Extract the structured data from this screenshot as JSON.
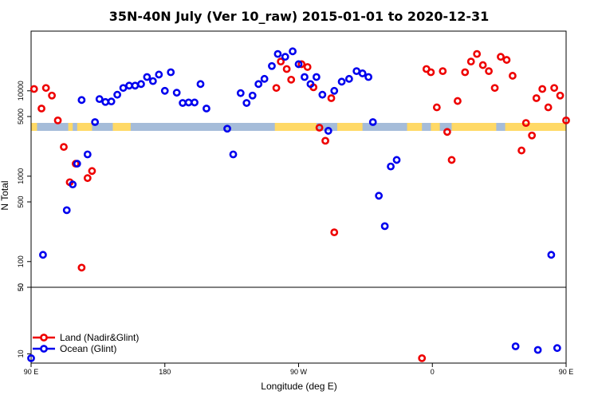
{
  "chart_data": {
    "type": "scatter",
    "title": "35N-40N July (Ver 10_raw)   2015-01-01 to 2020-12-31",
    "xlabel": "Longitude (deg E)",
    "ylabel": "N Total",
    "x_range": [
      90,
      450
    ],
    "x_ticks": [
      {
        "value": 90,
        "label": "90 E"
      },
      {
        "value": 180,
        "label": "180"
      },
      {
        "value": 270,
        "label": "90 W"
      },
      {
        "value": 360,
        "label": "0"
      },
      {
        "value": 450,
        "label": "90 E"
      },
      {
        "value": 540,
        "label": "180"
      }
    ],
    "upper_panel": {
      "scale": "log",
      "ylim": [
        50,
        50000
      ],
      "y_ticks": [
        {
          "value": 50,
          "label": "50"
        },
        {
          "value": 100,
          "label": "100"
        },
        {
          "value": 500,
          "label": "500"
        },
        {
          "value": 1000,
          "label": "1000"
        },
        {
          "value": 5000,
          "label": "5000"
        },
        {
          "value": 10000,
          "label": "10000"
        }
      ]
    },
    "lower_panel": {
      "scale": "log",
      "ylim": [
        8,
        50
      ],
      "y_ticks": [
        {
          "value": 10,
          "label": "10"
        },
        {
          "value": 50,
          "label": "50"
        }
      ]
    },
    "land_mask": {
      "color_land": "#ffd966",
      "color_ocean": "#a5bcd9",
      "land_ranges": [
        [
          90,
          94
        ],
        [
          115,
          118
        ],
        [
          121,
          131
        ],
        [
          145,
          157
        ],
        [
          254,
          282
        ],
        [
          296,
          313
        ],
        [
          343,
          353
        ],
        [
          359,
          365
        ],
        [
          373,
          403
        ],
        [
          409,
          454
        ],
        [
          459,
          466
        ]
      ]
    },
    "series": [
      {
        "name": "Land (Nadir&Glint)",
        "color": "#ee0000",
        "points": [
          {
            "x": 92,
            "y": 10500
          },
          {
            "x": 97,
            "y": 6200
          },
          {
            "x": 100,
            "y": 10800
          },
          {
            "x": 104,
            "y": 8800
          },
          {
            "x": 108,
            "y": 4500
          },
          {
            "x": 112,
            "y": 2200
          },
          {
            "x": 116,
            "y": 850
          },
          {
            "x": 120,
            "y": 1400
          },
          {
            "x": 124,
            "y": 85
          },
          {
            "x": 128,
            "y": 950
          },
          {
            "x": 131,
            "y": 1150
          },
          {
            "x": 255,
            "y": 10800
          },
          {
            "x": 258,
            "y": 22000
          },
          {
            "x": 262,
            "y": 18000
          },
          {
            "x": 265,
            "y": 13500
          },
          {
            "x": 272,
            "y": 20500
          },
          {
            "x": 276,
            "y": 19000
          },
          {
            "x": 280,
            "y": 11000
          },
          {
            "x": 284,
            "y": 3700
          },
          {
            "x": 288,
            "y": 2600
          },
          {
            "x": 292,
            "y": 8200
          },
          {
            "x": 294,
            "y": 220
          },
          {
            "x": 353,
            "y": 9
          },
          {
            "x": 356,
            "y": 18000
          },
          {
            "x": 359,
            "y": 16500
          },
          {
            "x": 363,
            "y": 6400
          },
          {
            "x": 367,
            "y": 17000
          },
          {
            "x": 370,
            "y": 3300
          },
          {
            "x": 373,
            "y": 1550
          },
          {
            "x": 377,
            "y": 7600
          },
          {
            "x": 382,
            "y": 16500
          },
          {
            "x": 386,
            "y": 22000
          },
          {
            "x": 390,
            "y": 27000
          },
          {
            "x": 394,
            "y": 20000
          },
          {
            "x": 398,
            "y": 17000
          },
          {
            "x": 402,
            "y": 10800
          },
          {
            "x": 406,
            "y": 25000
          },
          {
            "x": 410,
            "y": 23000
          },
          {
            "x": 414,
            "y": 15000
          },
          {
            "x": 420,
            "y": 2000
          },
          {
            "x": 423,
            "y": 4200
          },
          {
            "x": 427,
            "y": 3000
          },
          {
            "x": 430,
            "y": 8200
          },
          {
            "x": 434,
            "y": 10500
          },
          {
            "x": 438,
            "y": 6400
          },
          {
            "x": 442,
            "y": 10800
          },
          {
            "x": 446,
            "y": 8800
          },
          {
            "x": 450,
            "y": 4500
          }
        ]
      },
      {
        "name": "Ocean (Glint)",
        "color": "#0000ee",
        "points": [
          {
            "x": 90,
            "y": 9
          },
          {
            "x": 98,
            "y": 120
          },
          {
            "x": 114,
            "y": 400
          },
          {
            "x": 118,
            "y": 800
          },
          {
            "x": 121,
            "y": 1400
          },
          {
            "x": 124,
            "y": 7800
          },
          {
            "x": 128,
            "y": 1800
          },
          {
            "x": 133,
            "y": 4300
          },
          {
            "x": 136,
            "y": 8000
          },
          {
            "x": 140,
            "y": 7400
          },
          {
            "x": 144,
            "y": 7500
          },
          {
            "x": 148,
            "y": 9000
          },
          {
            "x": 152,
            "y": 10800
          },
          {
            "x": 156,
            "y": 11500
          },
          {
            "x": 160,
            "y": 11500
          },
          {
            "x": 164,
            "y": 12000
          },
          {
            "x": 168,
            "y": 14500
          },
          {
            "x": 172,
            "y": 13000
          },
          {
            "x": 176,
            "y": 15500
          },
          {
            "x": 180,
            "y": 10000
          },
          {
            "x": 184,
            "y": 16500
          },
          {
            "x": 188,
            "y": 9500
          },
          {
            "x": 192,
            "y": 7200
          },
          {
            "x": 196,
            "y": 7300
          },
          {
            "x": 200,
            "y": 7300
          },
          {
            "x": 204,
            "y": 12000
          },
          {
            "x": 208,
            "y": 6200
          },
          {
            "x": 222,
            "y": 3600
          },
          {
            "x": 226,
            "y": 1800
          },
          {
            "x": 231,
            "y": 9400
          },
          {
            "x": 235,
            "y": 7200
          },
          {
            "x": 239,
            "y": 8800
          },
          {
            "x": 243,
            "y": 12000
          },
          {
            "x": 247,
            "y": 13800
          },
          {
            "x": 252,
            "y": 19500
          },
          {
            "x": 256,
            "y": 27000
          },
          {
            "x": 261,
            "y": 25000
          },
          {
            "x": 266,
            "y": 29000
          },
          {
            "x": 270,
            "y": 20500
          },
          {
            "x": 274,
            "y": 14500
          },
          {
            "x": 278,
            "y": 12000
          },
          {
            "x": 282,
            "y": 14500
          },
          {
            "x": 286,
            "y": 9000
          },
          {
            "x": 290,
            "y": 3400
          },
          {
            "x": 294,
            "y": 10000
          },
          {
            "x": 299,
            "y": 12800
          },
          {
            "x": 304,
            "y": 13800
          },
          {
            "x": 309,
            "y": 17000
          },
          {
            "x": 313,
            "y": 16000
          },
          {
            "x": 317,
            "y": 14500
          },
          {
            "x": 320,
            "y": 4300
          },
          {
            "x": 324,
            "y": 590
          },
          {
            "x": 328,
            "y": 260
          },
          {
            "x": 332,
            "y": 1300
          },
          {
            "x": 336,
            "y": 1550
          },
          {
            "x": 416,
            "y": 12
          },
          {
            "x": 431,
            "y": 11
          },
          {
            "x": 440,
            "y": 120
          },
          {
            "x": 444,
            "y": 11.5
          }
        ]
      }
    ],
    "legend": {
      "position": "bottom-left",
      "entries": [
        "Land (Nadir&Glint)",
        "Ocean (Glint)"
      ]
    }
  }
}
